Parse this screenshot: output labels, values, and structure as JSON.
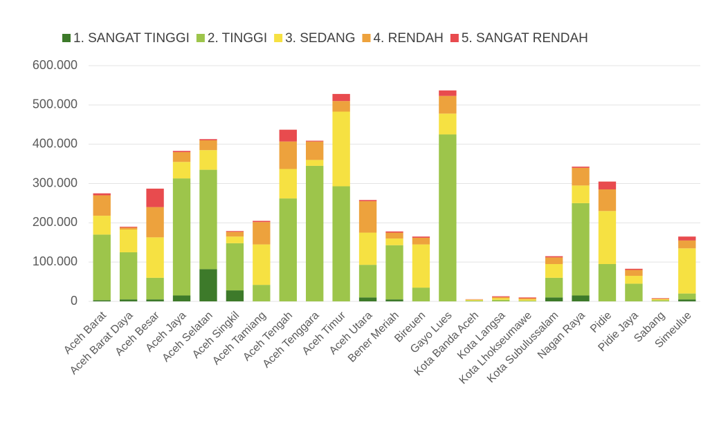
{
  "chart_data": {
    "type": "stacked_bar",
    "categories": [
      "Aceh Barat",
      "Aceh Barat Daya",
      "Aceh Besar",
      "Aceh Jaya",
      "Aceh Selatan",
      "Aceh Singkil",
      "Aceh Tamiang",
      "Aceh Tengah",
      "Aceh Tenggara",
      "Aceh Timur",
      "Aceh Utara",
      "Bener Meriah",
      "Bireuen",
      "Gayo Lues",
      "Kota Banda Aceh",
      "Kota Langsa",
      "Kota Lhokseumawe",
      "Kota Subulussalam",
      "Nagan Raya",
      "Pidie",
      "Pidie Jaya",
      "Sabang",
      "Simeulue"
    ],
    "series": [
      {
        "name": "1. SANGAT TINGGI",
        "color": "#3d7a2a",
        "values": [
          3000,
          5000,
          5000,
          15000,
          82000,
          28000,
          0,
          0,
          0,
          0,
          10000,
          5000,
          0,
          0,
          0,
          0,
          0,
          10000,
          15000,
          0,
          0,
          0,
          5000
        ]
      },
      {
        "name": "2. TINGGI",
        "color": "#9dc54b",
        "values": [
          167000,
          120000,
          55000,
          298000,
          253000,
          120000,
          42000,
          262000,
          345000,
          293000,
          83000,
          138000,
          35000,
          425000,
          2000,
          4000,
          2000,
          50000,
          235000,
          95000,
          45000,
          3000,
          15000
        ]
      },
      {
        "name": "3. SEDANG",
        "color": "#f6e142",
        "values": [
          48000,
          58000,
          103000,
          42000,
          50000,
          17000,
          103000,
          75000,
          15000,
          190000,
          82000,
          17000,
          110000,
          53000,
          2000,
          4000,
          3000,
          35000,
          45000,
          135000,
          20000,
          2000,
          115000
        ]
      },
      {
        "name": "4. RENDAH",
        "color": "#eda23d",
        "values": [
          52000,
          5000,
          77000,
          25000,
          25000,
          12000,
          57000,
          70000,
          47000,
          27000,
          80000,
          15000,
          17000,
          45000,
          1000,
          3000,
          3000,
          17000,
          45000,
          55000,
          15000,
          2000,
          20000
        ]
      },
      {
        "name": "5. SANGAT RENDAH",
        "color": "#e84b4e",
        "values": [
          5000,
          2000,
          47000,
          3000,
          3000,
          2000,
          3000,
          30000,
          2000,
          18000,
          3000,
          3000,
          3000,
          14000,
          500,
          2000,
          2000,
          3000,
          3000,
          20000,
          3000,
          1000,
          10000
        ]
      }
    ],
    "ylim": [
      0,
      600000
    ],
    "yticks": [
      0,
      {
        "value": 100000,
        "label": "100.000"
      },
      {
        "value": 200000,
        "label": "200.000"
      },
      {
        "value": 300000,
        "label": "300.000"
      },
      {
        "value": 400000,
        "label": "400.000"
      },
      {
        "value": 500000,
        "label": "500.000"
      },
      {
        "value": 600000,
        "label": "600.000"
      }
    ],
    "grid": true,
    "legend": "top"
  }
}
